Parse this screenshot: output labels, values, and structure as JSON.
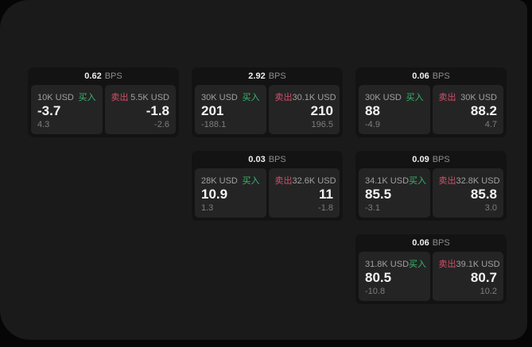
{
  "labels": {
    "bps_unit": "BPS",
    "buy": "买入",
    "sell": "卖出"
  },
  "colors": {
    "buy_green": "#35b96e",
    "sell_red": "#d0506a",
    "window_bg": "#1a1a1a",
    "card_bg": "#131313",
    "panel_bg": "#242424",
    "backdrop": "#060606"
  },
  "cards": [
    {
      "grid": {
        "col": 1,
        "row": 1
      },
      "bps": "0.62",
      "buy": {
        "amount": "10K USD",
        "price": "-3.7",
        "delta": "4.3"
      },
      "sell": {
        "amount": "5.5K USD",
        "price": "-1.8",
        "delta": "-2.6"
      }
    },
    {
      "grid": {
        "col": 2,
        "row": 1
      },
      "bps": "2.92",
      "buy": {
        "amount": "30K USD",
        "price": "201",
        "delta": "-188.1"
      },
      "sell": {
        "amount": "30.1K USD",
        "price": "210",
        "delta": "196.5"
      }
    },
    {
      "grid": {
        "col": 3,
        "row": 1
      },
      "bps": "0.06",
      "buy": {
        "amount": "30K USD",
        "price": "88",
        "delta": "-4.9"
      },
      "sell": {
        "amount": "30K USD",
        "price": "88.2",
        "delta": "4.7"
      }
    },
    {
      "grid": {
        "col": 2,
        "row": 2
      },
      "bps": "0.03",
      "buy": {
        "amount": "28K USD",
        "price": "10.9",
        "delta": "1.3"
      },
      "sell": {
        "amount": "32.6K USD",
        "price": "11",
        "delta": "-1.8"
      }
    },
    {
      "grid": {
        "col": 3,
        "row": 2
      },
      "bps": "0.09",
      "buy": {
        "amount": "34.1K USD",
        "price": "85.5",
        "delta": "-3.1"
      },
      "sell": {
        "amount": "32.8K USD",
        "price": "85.8",
        "delta": "3.0"
      }
    },
    {
      "grid": {
        "col": 3,
        "row": 3
      },
      "bps": "0.06",
      "buy": {
        "amount": "31.8K USD",
        "price": "80.5",
        "delta": "-10.8"
      },
      "sell": {
        "amount": "39.1K USD",
        "price": "80.7",
        "delta": "10.2"
      }
    }
  ]
}
